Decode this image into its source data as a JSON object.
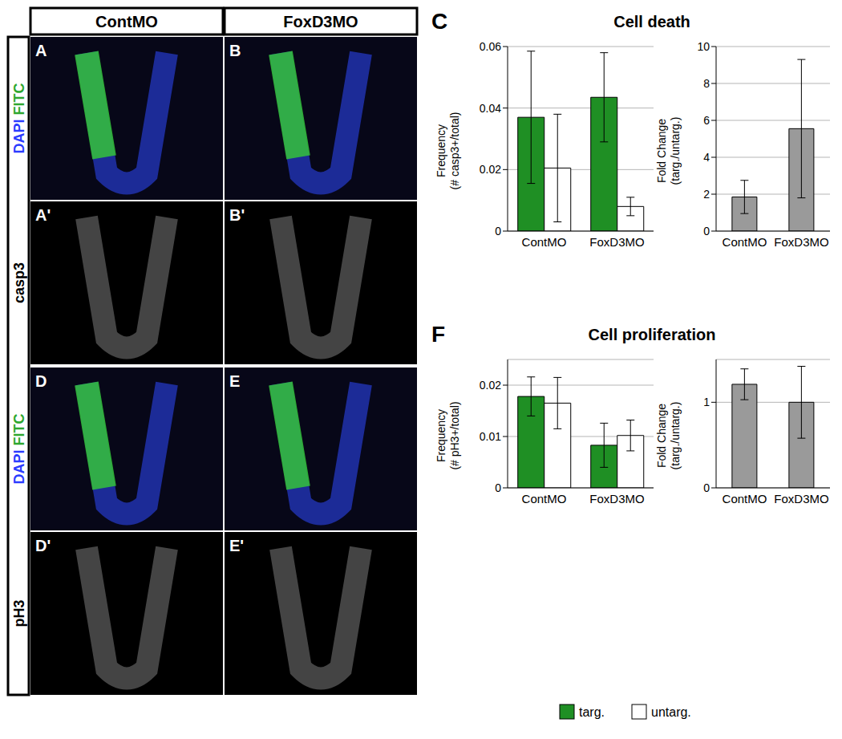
{
  "images": {
    "columns": [
      "ContMO",
      "FoxD3MO"
    ],
    "rows": [
      {
        "label": [
          {
            "text": "DAPI",
            "color": "#2b3cff"
          },
          {
            "text": "FITC",
            "color": "#2ea82e"
          }
        ],
        "panels": [
          "A",
          "B"
        ]
      },
      {
        "label": [
          {
            "text": "casp3",
            "color": "#000000"
          }
        ],
        "panels": [
          "A'",
          "B'"
        ]
      },
      {
        "label": [
          {
            "text": "DAPI",
            "color": "#2b3cff"
          },
          {
            "text": "FITC",
            "color": "#2ea82e"
          }
        ],
        "panels": [
          "D",
          "E"
        ]
      },
      {
        "label": [
          {
            "text": "pH3",
            "color": "#000000"
          }
        ],
        "panels": [
          "D'",
          "E'"
        ]
      }
    ]
  },
  "chart_data": [
    {
      "type": "bar",
      "panel": "C",
      "title": "Cell death",
      "y_label": [
        "Frequency",
        "(# casp3+/total)"
      ],
      "categories": [
        "ContMO",
        "FoxD3MO"
      ],
      "series": [
        {
          "name": "targ.",
          "color": "#1f8f24",
          "values": [
            0.037,
            0.0435
          ],
          "errors": [
            0.0215,
            0.0145
          ]
        },
        {
          "name": "untarg.",
          "color": "#ffffff",
          "values": [
            0.0205,
            0.008
          ],
          "errors": [
            0.0175,
            0.003
          ]
        }
      ],
      "ylim": [
        0,
        0.06
      ],
      "yticks": [
        0,
        0.02,
        0.04,
        0.06
      ],
      "grid": true
    },
    {
      "type": "bar",
      "y_label": [
        "Fold Change",
        "(targ./untarg.)"
      ],
      "categories": [
        "ContMO",
        "FoxD3MO"
      ],
      "values": [
        1.85,
        5.55
      ],
      "errors": [
        0.9,
        3.75
      ],
      "color": "#9a9a9a",
      "ylim": [
        0,
        10
      ],
      "yticks": [
        0,
        2,
        4,
        6,
        8,
        10
      ],
      "grid": true
    },
    {
      "type": "bar",
      "panel": "F",
      "title": "Cell proliferation",
      "y_label": [
        "Frequency",
        "(# pH3+/total)"
      ],
      "categories": [
        "ContMO",
        "FoxD3MO"
      ],
      "series": [
        {
          "name": "targ.",
          "color": "#1f8f24",
          "values": [
            0.0178,
            0.0083
          ],
          "errors": [
            0.0038,
            0.0043
          ]
        },
        {
          "name": "untarg.",
          "color": "#ffffff",
          "values": [
            0.0165,
            0.0102
          ],
          "errors": [
            0.005,
            0.003
          ]
        }
      ],
      "ylim": [
        0,
        0.025
      ],
      "yticks": [
        0,
        0.01,
        0.02
      ],
      "grid": true,
      "legend": "bottom"
    },
    {
      "type": "bar",
      "y_label": [
        "Fold Change",
        "(targ./untarg.)"
      ],
      "categories": [
        "ContMO",
        "FoxD3MO"
      ],
      "values": [
        1.21,
        1.0
      ],
      "errors": [
        0.18,
        0.42
      ],
      "color": "#9a9a9a",
      "ylim": [
        0,
        1.5
      ],
      "yticks": [
        0,
        1
      ],
      "grid": true
    }
  ]
}
